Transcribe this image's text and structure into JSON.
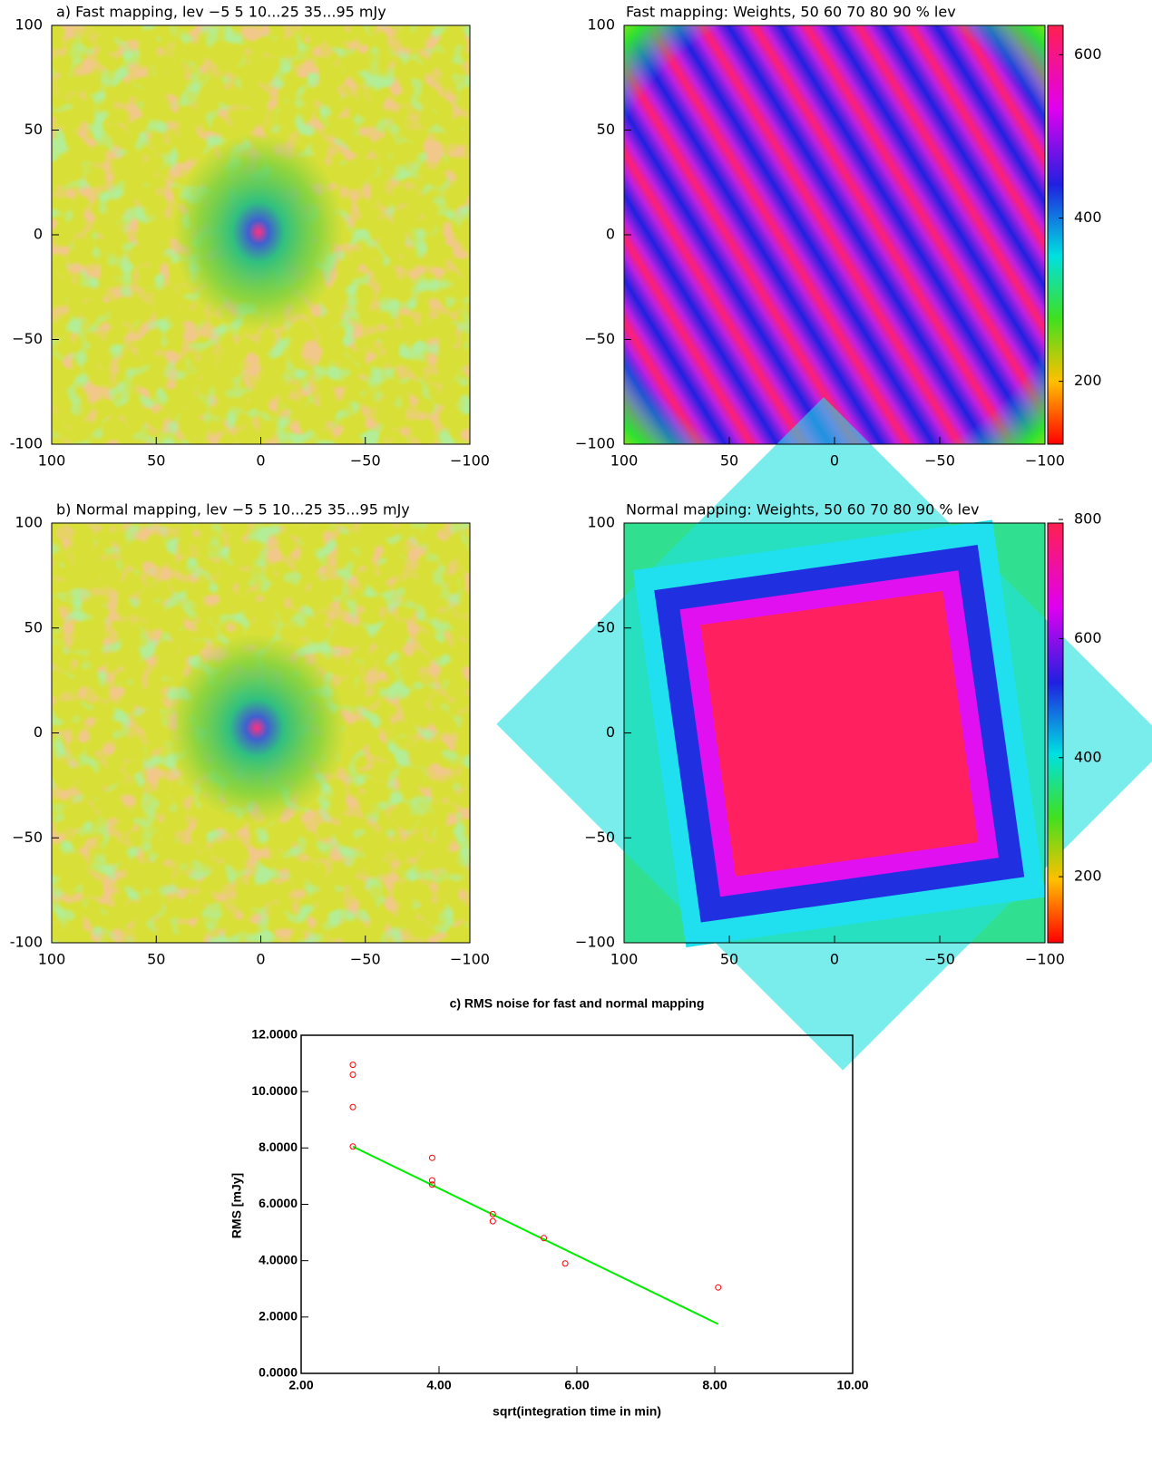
{
  "chart_data": [
    {
      "type": "image",
      "title": "a) Fast mapping, lev −5 5 10...25 35...95 mJy",
      "xlim": [
        100,
        -100
      ],
      "ylim": [
        -100,
        100
      ],
      "xticks": [
        100,
        50,
        0,
        {
          "value": -50,
          "label": "−50"
        },
        {
          "value": -100,
          "label": "−100"
        }
      ],
      "yticks": [
        {
          "value": -100,
          "label": "-100"
        },
        {
          "value": -50,
          "label": "−50"
        },
        0,
        50,
        100
      ]
    },
    {
      "type": "image",
      "title": "Fast mapping: Weights, 50 60 70 80 90 % lev",
      "xlim": [
        100,
        -100
      ],
      "ylim": [
        -100,
        100
      ],
      "xticks": [
        100,
        50,
        0,
        {
          "value": -50,
          "label": "−50"
        },
        {
          "value": -100,
          "label": "−100"
        }
      ],
      "yticks": [
        {
          "value": -100,
          "label": "−100"
        },
        {
          "value": -50,
          "label": "−50"
        },
        0,
        50,
        100
      ],
      "colorbar": {
        "lim": [
          123,
          636
        ],
        "ticks": [
          200,
          400,
          600
        ]
      }
    },
    {
      "type": "image",
      "title": "b) Normal mapping, lev −5 5 10...25 35...95 mJy",
      "xlim": [
        100,
        -100
      ],
      "ylim": [
        -100,
        100
      ],
      "xticks": [
        100,
        50,
        0,
        {
          "value": -50,
          "label": "−50"
        },
        {
          "value": -100,
          "label": "−100"
        }
      ],
      "yticks": [
        {
          "value": -100,
          "label": "-100"
        },
        {
          "value": -50,
          "label": "−50"
        },
        0,
        50,
        100
      ]
    },
    {
      "type": "image",
      "title": "Normal mapping: Weights, 50 60 70 80 90 % lev",
      "xlim": [
        100,
        -100
      ],
      "ylim": [
        -100,
        100
      ],
      "xticks": [
        100,
        50,
        0,
        {
          "value": -50,
          "label": "−50"
        },
        {
          "value": -100,
          "label": "−100"
        }
      ],
      "yticks": [
        {
          "value": -100,
          "label": "−100"
        },
        {
          "value": -50,
          "label": "−50"
        },
        0,
        50,
        100
      ],
      "colorbar": {
        "lim": [
          89,
          794
        ],
        "ticks": [
          200,
          400,
          600,
          800
        ]
      }
    },
    {
      "type": "scatter",
      "title": "c) RMS noise for fast and normal mapping",
      "x_label": "sqrt(integration time in min)",
      "y_label": "RMS [mJy]",
      "xlim": [
        2,
        10
      ],
      "ylim": [
        0,
        12
      ],
      "xticks": [
        {
          "value": 2,
          "label": "2.00"
        },
        {
          "value": 4,
          "label": "4.00"
        },
        {
          "value": 6,
          "label": "6.00"
        },
        {
          "value": 8,
          "label": "8.00"
        },
        {
          "value": 10,
          "label": "10.00"
        }
      ],
      "yticks": [
        {
          "value": 0,
          "label": "0.0000"
        },
        {
          "value": 2,
          "label": "2.0000"
        },
        {
          "value": 4,
          "label": "4.0000"
        },
        {
          "value": 6,
          "label": "6.0000"
        },
        {
          "value": 8,
          "label": "8.0000"
        },
        {
          "value": 10,
          "label": "10.0000"
        },
        {
          "value": 12,
          "label": "12.0000"
        }
      ],
      "x": [
        2.75,
        2.75,
        2.75,
        2.75,
        3.9,
        3.9,
        3.9,
        4.78,
        4.78,
        5.52,
        5.83,
        8.05
      ],
      "values": [
        10.95,
        10.6,
        9.45,
        8.05,
        7.65,
        6.85,
        6.7,
        5.65,
        5.4,
        4.8,
        3.9,
        3.05
      ],
      "color": "#ff0000",
      "fit": {
        "x": [
          2.75,
          8.05
        ],
        "values": [
          8.05,
          1.75
        ],
        "color": "#00ee00"
      }
    }
  ]
}
